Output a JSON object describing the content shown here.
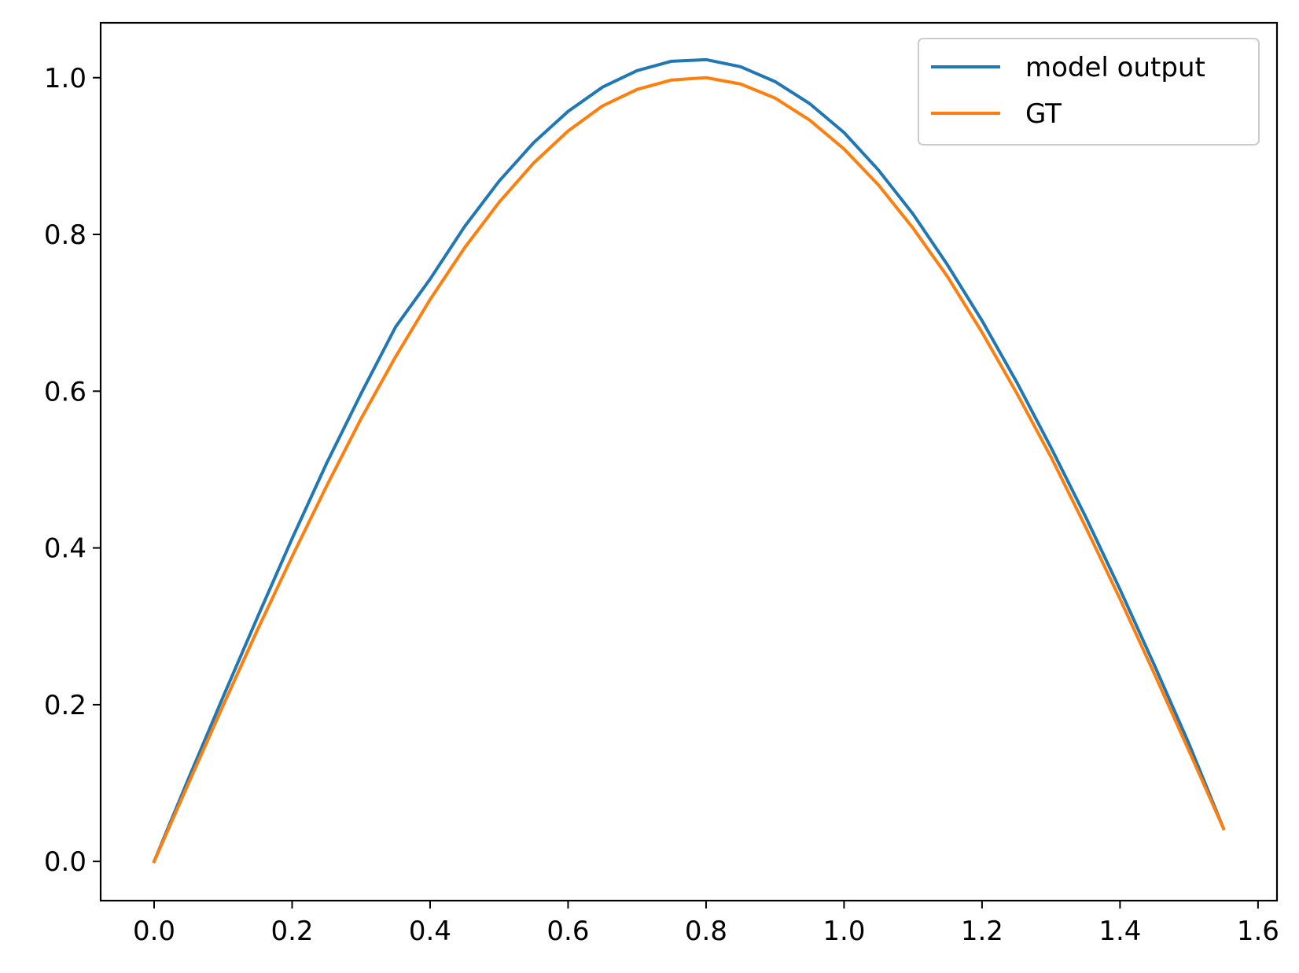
{
  "chart_data": {
    "type": "line",
    "title": "",
    "xlabel": "",
    "ylabel": "",
    "xlim": [
      -0.0775,
      1.6275
    ],
    "ylim": [
      -0.05,
      1.07
    ],
    "x_ticks": [
      0.0,
      0.2,
      0.4,
      0.6,
      0.8,
      1.0,
      1.2,
      1.4,
      1.6
    ],
    "x_tick_labels": [
      "0.0",
      "0.2",
      "0.4",
      "0.6",
      "0.8",
      "1.0",
      "1.2",
      "1.4",
      "1.6"
    ],
    "y_ticks": [
      0.0,
      0.2,
      0.4,
      0.6,
      0.8,
      1.0
    ],
    "y_tick_labels": [
      "0.0",
      "0.2",
      "0.4",
      "0.6",
      "0.8",
      "1.0"
    ],
    "grid": false,
    "legend": {
      "position": "top-right"
    },
    "x": [
      0.0,
      0.05,
      0.1,
      0.15,
      0.2,
      0.25,
      0.3,
      0.35,
      0.4,
      0.45,
      0.5,
      0.55,
      0.6,
      0.65,
      0.7,
      0.75,
      0.8,
      0.85,
      0.9,
      0.95,
      1.0,
      1.05,
      1.1,
      1.15,
      1.2,
      1.25,
      1.3,
      1.35,
      1.4,
      1.45,
      1.5,
      1.55
    ],
    "series": [
      {
        "name": "model output",
        "color": "#1f77b4",
        "values": [
          0.0,
          0.106,
          0.21,
          0.312,
          0.412,
          0.508,
          0.597,
          0.682,
          0.743,
          0.81,
          0.868,
          0.917,
          0.957,
          0.988,
          1.009,
          1.021,
          1.023,
          1.014,
          0.995,
          0.967,
          0.93,
          0.882,
          0.826,
          0.761,
          0.69,
          0.612,
          0.528,
          0.44,
          0.347,
          0.25,
          0.15,
          0.042
        ]
      },
      {
        "name": "GT",
        "color": "#ff7f0e",
        "values": [
          0.0,
          0.1,
          0.199,
          0.296,
          0.389,
          0.479,
          0.565,
          0.644,
          0.717,
          0.783,
          0.841,
          0.891,
          0.932,
          0.964,
          0.985,
          0.997,
          1.0,
          0.992,
          0.974,
          0.946,
          0.909,
          0.863,
          0.808,
          0.746,
          0.675,
          0.598,
          0.516,
          0.427,
          0.335,
          0.239,
          0.141,
          0.042
        ]
      }
    ]
  }
}
